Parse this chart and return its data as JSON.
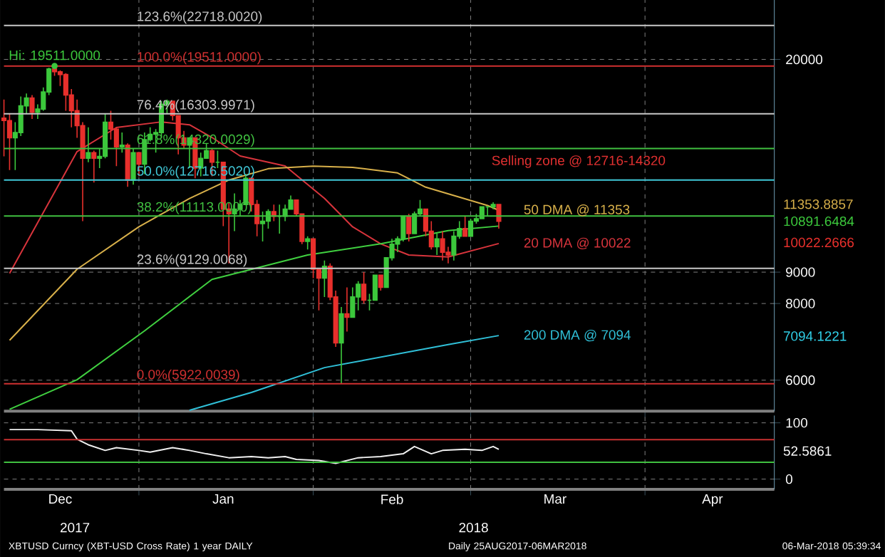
{
  "chart_data": [
    {
      "type": "candlestick",
      "log": true,
      "grid": true,
      "tick_labels": "y",
      "x": [
        "2017-12-08",
        "2017-12-09",
        "2017-12-10",
        "2017-12-11",
        "2017-12-12",
        "2017-12-13",
        "2017-12-14",
        "2017-12-15",
        "2017-12-16",
        "2017-12-17",
        "2017-12-18",
        "2017-12-19",
        "2017-12-20",
        "2017-12-21",
        "2017-12-22",
        "2017-12-23",
        "2017-12-24",
        "2017-12-25",
        "2017-12-26",
        "2017-12-27",
        "2017-12-28",
        "2017-12-29",
        "2017-12-30",
        "2017-12-31",
        "2018-01-01",
        "2018-01-02",
        "2018-01-03",
        "2018-01-04",
        "2018-01-05",
        "2018-01-06",
        "2018-01-07",
        "2018-01-08",
        "2018-01-09",
        "2018-01-10",
        "2018-01-11",
        "2018-01-12",
        "2018-01-13",
        "2018-01-14",
        "2018-01-15",
        "2018-01-16",
        "2018-01-17",
        "2018-01-18",
        "2018-01-19",
        "2018-01-20",
        "2018-01-21",
        "2018-01-22",
        "2018-01-23",
        "2018-01-24",
        "2018-01-25",
        "2018-01-26",
        "2018-01-27",
        "2018-01-28",
        "2018-01-29",
        "2018-01-30",
        "2018-01-31",
        "2018-02-01",
        "2018-02-02",
        "2018-02-03",
        "2018-02-04",
        "2018-02-05",
        "2018-02-06",
        "2018-02-07",
        "2018-02-08",
        "2018-02-09",
        "2018-02-10",
        "2018-02-11",
        "2018-02-12",
        "2018-02-13",
        "2018-02-14",
        "2018-02-15",
        "2018-02-16",
        "2018-02-17",
        "2018-02-18",
        "2018-02-19",
        "2018-02-20",
        "2018-02-21",
        "2018-02-22",
        "2018-02-23",
        "2018-02-24",
        "2018-02-25",
        "2018-02-26",
        "2018-02-27",
        "2018-02-28",
        "2018-03-01",
        "2018-03-02",
        "2018-03-03",
        "2018-03-04",
        "2018-03-05",
        "2018-03-06"
      ],
      "ohlc": [
        [
          16050,
          17200,
          13900,
          15900
        ],
        [
          15900,
          16300,
          13200,
          14900
        ],
        [
          14900,
          15800,
          13200,
          15200
        ],
        [
          15200,
          17400,
          15000,
          16800
        ],
        [
          16800,
          17600,
          16300,
          17300
        ],
        [
          17300,
          17500,
          16000,
          16400
        ],
        [
          16400,
          16900,
          16000,
          16600
        ],
        [
          16600,
          18000,
          16500,
          17700
        ],
        [
          17700,
          19400,
          17500,
          19300
        ],
        [
          19300,
          19511,
          18800,
          19100
        ],
        [
          19100,
          19200,
          18100,
          18900
        ],
        [
          18900,
          19000,
          16500,
          17500
        ],
        [
          17500,
          17900,
          15500,
          16500
        ],
        [
          16500,
          17200,
          14900,
          15600
        ],
        [
          15600,
          15800,
          10900,
          13800
        ],
        [
          13800,
          15500,
          13600,
          14100
        ],
        [
          14100,
          14200,
          12600,
          13800
        ],
        [
          13800,
          14300,
          13300,
          13900
        ],
        [
          13900,
          16300,
          13800,
          15800
        ],
        [
          15800,
          16500,
          14800,
          15400
        ],
        [
          15400,
          15500,
          13400,
          14400
        ],
        [
          14400,
          15200,
          14100,
          14500
        ],
        [
          14500,
          14600,
          12400,
          12700
        ],
        [
          12700,
          14300,
          12500,
          14100
        ],
        [
          14100,
          14100,
          12900,
          13500
        ],
        [
          13500,
          15200,
          13000,
          14800
        ],
        [
          14800,
          15500,
          14700,
          15100
        ],
        [
          15100,
          15400,
          14100,
          15200
        ],
        [
          15200,
          17100,
          14900,
          16900
        ],
        [
          16900,
          17200,
          16300,
          17100
        ],
        [
          17100,
          17100,
          15900,
          16200
        ],
        [
          16200,
          16200,
          14000,
          14900
        ],
        [
          14900,
          15300,
          14300,
          14500
        ],
        [
          14500,
          14900,
          13300,
          14900
        ],
        [
          14900,
          14900,
          12800,
          13300
        ],
        [
          13300,
          14100,
          12900,
          13800
        ],
        [
          13800,
          14600,
          13800,
          14200
        ],
        [
          14200,
          14300,
          12900,
          13600
        ],
        [
          13600,
          14200,
          13300,
          13600
        ],
        [
          13600,
          13600,
          10700,
          11400
        ],
        [
          11400,
          11700,
          9300,
          11200
        ],
        [
          11200,
          12100,
          10500,
          11400
        ],
        [
          11400,
          11800,
          11100,
          11600
        ],
        [
          11600,
          13000,
          11600,
          12800
        ],
        [
          12800,
          12800,
          11300,
          11600
        ],
        [
          11600,
          11800,
          10300,
          10800
        ],
        [
          10800,
          11300,
          10100,
          10900
        ],
        [
          10900,
          11400,
          10600,
          11300
        ],
        [
          11300,
          11600,
          10900,
          11100
        ],
        [
          11100,
          11600,
          10400,
          11100
        ],
        [
          11100,
          11600,
          10900,
          11400
        ],
        [
          11400,
          12000,
          11400,
          11800
        ],
        [
          11800,
          11800,
          11100,
          11200
        ],
        [
          11200,
          11200,
          10000,
          10100
        ],
        [
          10100,
          10300,
          9800,
          10200
        ],
        [
          10200,
          10200,
          8800,
          9100
        ],
        [
          9100,
          9100,
          7800,
          8800
        ],
        [
          8800,
          9400,
          8200,
          9200
        ],
        [
          9200,
          9300,
          8100,
          8200
        ],
        [
          8200,
          8400,
          6800,
          6900
        ],
        [
          6900,
          7900,
          5922,
          7700
        ],
        [
          7700,
          8500,
          7200,
          7600
        ],
        [
          7600,
          8500,
          7600,
          8200
        ],
        [
          8200,
          8700,
          7800,
          8600
        ],
        [
          8600,
          9000,
          8000,
          8100
        ],
        [
          8100,
          8300,
          7800,
          8100
        ],
        [
          8100,
          8900,
          8100,
          8900
        ],
        [
          8900,
          8900,
          8400,
          8500
        ],
        [
          8500,
          9500,
          8500,
          9500
        ],
        [
          9500,
          10200,
          9400,
          10000
        ],
        [
          10000,
          10300,
          9700,
          10200
        ],
        [
          10200,
          11100,
          10100,
          11100
        ],
        [
          11100,
          11200,
          10100,
          10400
        ],
        [
          10400,
          11300,
          10400,
          11200
        ],
        [
          11200,
          11800,
          11100,
          11400
        ],
        [
          11400,
          11400,
          10300,
          10500
        ],
        [
          10500,
          10900,
          9800,
          9900
        ],
        [
          9900,
          10400,
          9600,
          10200
        ],
        [
          10200,
          10500,
          9400,
          9700
        ],
        [
          9700,
          9900,
          9300,
          9600
        ],
        [
          9600,
          10500,
          9400,
          10300
        ],
        [
          10300,
          10900,
          10200,
          10600
        ],
        [
          10600,
          11100,
          10300,
          10300
        ],
        [
          10300,
          11000,
          10300,
          10900
        ],
        [
          10900,
          11200,
          10800,
          11000
        ],
        [
          11000,
          11500,
          11000,
          11500
        ],
        [
          11500,
          11500,
          11100,
          11500
        ],
        [
          11500,
          11700,
          11400,
          11600
        ],
        [
          11600,
          11600,
          10600,
          10890
        ]
      ],
      "series": [
        {
          "type": "line",
          "color": "#d8343c",
          "x": [
            "2017-12-09",
            "2017-12-21",
            "2017-12-28",
            "2018-01-05",
            "2018-01-10",
            "2018-01-14",
            "2018-01-19",
            "2018-01-27",
            "2018-02-03",
            "2018-02-08",
            "2018-02-13",
            "2018-02-18",
            "2018-02-25",
            "2018-03-06"
          ],
          "values": [
            8960,
            14150,
            15490,
            15820,
            15650,
            14920,
            13920,
            13410,
            11870,
            10670,
            10010,
            9600,
            9530,
            10022
          ]
        },
        {
          "type": "line",
          "color": "#d8b04a",
          "x": [
            "2017-12-09",
            "2017-12-21",
            "2018-01-01",
            "2018-01-10",
            "2018-01-17",
            "2018-01-24",
            "2018-02-01",
            "2018-02-08",
            "2018-02-16",
            "2018-02-21",
            "2018-03-04",
            "2018-03-06"
          ],
          "values": [
            6970,
            9100,
            10670,
            11870,
            12720,
            13270,
            13400,
            13340,
            13060,
            12380,
            11560,
            11353
          ]
        },
        {
          "type": "line",
          "color": "#40d040",
          "x": [
            "2017-12-09",
            "2017-12-21",
            "2018-01-02",
            "2018-01-14",
            "2018-01-31",
            "2018-02-13",
            "2018-02-25",
            "2018-03-06"
          ],
          "values": [
            5380,
            6010,
            7220,
            8760,
            9600,
            10010,
            10520,
            10700
          ]
        },
        {
          "type": "line",
          "color": "#30c0d8",
          "x": [
            "2018-01-10",
            "2018-01-21",
            "2018-02-03",
            "2018-02-25",
            "2018-03-06"
          ],
          "values": [
            5360,
            5730,
            6290,
            6860,
            7094
          ]
        }
      ],
      "xlim": [
        "2017-12-08",
        "2018-04-24"
      ],
      "xticks": [
        {
          "value": "2018-01-01",
          "label": null
        },
        {
          "value": "2018-02-01",
          "label": null
        },
        {
          "value": "2018-03-01",
          "label": null
        },
        {
          "value": "2018-04-01",
          "label": null
        }
      ],
      "ylim": [
        5340,
        25000
      ],
      "yticks": [
        6000,
        8000,
        9000,
        20000
      ],
      "ref_lines": [
        {
          "axis": "y",
          "value": 22718.002,
          "label": "123.6%(22718.0020)",
          "color": "#c8c8c8"
        },
        {
          "axis": "y",
          "value": 19511,
          "label": "100.0%(19511.0000)",
          "color": "#d03030"
        },
        {
          "axis": "y",
          "value": 16303.9971,
          "label": "76.4%(16303.9971)",
          "color": "#c8c8c8"
        },
        {
          "axis": "y",
          "value": 14320.0029,
          "label": "61.8%(14320.0029)",
          "color": "#40c040"
        },
        {
          "axis": "y",
          "value": 12716.502,
          "label": "50.0%(12716.5020)",
          "color": "#40c8d8"
        },
        {
          "axis": "y",
          "value": 11113,
          "label": "38.2%(11113.0000)",
          "color": "#40c040"
        },
        {
          "axis": "y",
          "value": 9129.0068,
          "label": "23.6%(9129.0068)",
          "color": "#c8c8c8"
        },
        {
          "axis": "y",
          "value": 5922.0039,
          "label": "0.0%(5922.0039)",
          "color": "#d03030"
        }
      ],
      "annotations": [
        {
          "text": "Hi: 19511.0000",
          "x": "2017-12-17",
          "y": 19511
        },
        "Selling zone @ 12716-14320",
        {
          "text": "50 DMA @ 11353",
          "x": "2018-03-06",
          "y": 11353
        },
        {
          "text": "20 DMA @ 10022",
          "x": "2018-03-06",
          "y": 10022
        },
        {
          "text": "200 DMA @ 7094",
          "x": "2018-03-06",
          "y": 7094
        },
        "11353.8857",
        "10891.6484",
        "10022.2666",
        "7094.1221"
      ]
    },
    {
      "type": "line",
      "grid": true,
      "color": "#f0f0f0",
      "x": [
        "2017-12-09",
        "2017-12-14",
        "2017-12-20",
        "2017-12-21",
        "2017-12-23",
        "2017-12-26",
        "2017-12-28",
        "2018-01-01",
        "2018-01-03",
        "2018-01-07",
        "2018-01-10",
        "2018-01-13",
        "2018-01-17",
        "2018-01-21",
        "2018-01-24",
        "2018-01-27",
        "2018-01-29",
        "2018-02-02",
        "2018-02-05",
        "2018-02-09",
        "2018-02-13",
        "2018-02-17",
        "2018-02-19",
        "2018-02-22",
        "2018-02-24",
        "2018-02-28",
        "2018-03-03",
        "2018-03-05",
        "2018-03-06"
      ],
      "values": [
        88,
        88,
        86,
        71,
        61,
        51,
        56,
        51,
        48,
        56,
        51,
        45,
        38,
        40,
        38,
        40,
        35,
        33,
        28,
        38,
        40,
        45,
        58,
        45,
        51,
        53,
        51,
        58,
        53
      ],
      "xlim": [
        "2017-12-08",
        "2018-04-24"
      ],
      "xticks": [
        {
          "value": "2017-12-18",
          "label": "Dec"
        },
        {
          "value": "2018-01-01",
          "label": null
        },
        {
          "value": "2018-01-16",
          "label": "Jan"
        },
        {
          "value": "2018-02-01",
          "label": null
        },
        {
          "value": "2018-02-15",
          "label": "Feb"
        },
        {
          "value": "2018-03-01",
          "label": null
        },
        {
          "value": "2018-03-16",
          "label": "Mar"
        },
        {
          "value": "2018-04-01",
          "label": null
        },
        {
          "value": "2018-04-13",
          "label": "Apr"
        }
      ],
      "ylim": [
        -18,
        113
      ],
      "yticks": [
        0,
        100
      ],
      "ref_lines": [
        {
          "axis": "y",
          "value": 70,
          "color": "#c83030"
        },
        {
          "axis": "y",
          "value": 30,
          "color": "#40c040"
        }
      ],
      "annotations": [
        "2017",
        "2018",
        "52.5861",
        "XBTUSD Curncy (XBT-USD Cross Rate) 1 year DAILY",
        "Daily 25AUG2017-06MAR2018",
        "06-Mar-2018 05:39:34"
      ]
    }
  ]
}
